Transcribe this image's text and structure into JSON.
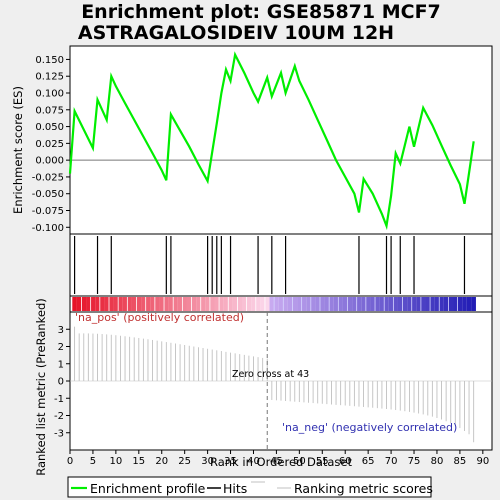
{
  "title_line1": "Enrichment plot: GSE85871 MCF7",
  "title_line2": "ASTRAGALOSIDEIV 10UM 12H",
  "colors": {
    "es_line": "#00ee00",
    "hits": "#000000",
    "ranking": "#c0c0c0",
    "pos_bar": "#dd0000",
    "neg_bar": "#3300cc",
    "zero_line": "#777777"
  },
  "es_panel": {
    "ylabel": "Enrichment score (ES)",
    "ylim": [
      -0.11,
      0.17
    ],
    "yticks": [
      "0.150",
      "0.125",
      "0.100",
      "0.075",
      "0.050",
      "0.025",
      "0.000",
      "-0.025",
      "-0.050",
      "-0.075",
      "-0.100"
    ],
    "ytick_values": [
      0.15,
      0.125,
      0.1,
      0.075,
      0.05,
      0.025,
      0.0,
      -0.025,
      -0.05,
      -0.075,
      -0.1
    ]
  },
  "rank_panel": {
    "ylabel": "Ranked list metric (PreRanked)",
    "xlabel": "Rank in Ordered Dataset",
    "ylim": [
      -4,
      4
    ],
    "yticks": [
      "3",
      "2",
      "1",
      "0",
      "-1",
      "-2",
      "-3"
    ],
    "ytick_values": [
      3,
      2,
      1,
      0,
      -1,
      -2,
      -3
    ],
    "pos_label": "'na_pos' (positively correlated)",
    "neg_label": "'na_neg' (negatively correlated)",
    "zero_cross_label": "Zero cross at 43"
  },
  "xaxis": {
    "xlim": [
      0,
      92
    ],
    "ticks": [
      "0",
      "5",
      "10",
      "15",
      "20",
      "25",
      "30",
      "35",
      "40",
      "45",
      "50",
      "55",
      "60",
      "65",
      "70",
      "75",
      "80",
      "85",
      "90"
    ],
    "tick_values": [
      0,
      5,
      10,
      15,
      20,
      25,
      30,
      35,
      40,
      45,
      50,
      55,
      60,
      65,
      70,
      75,
      80,
      85,
      90
    ]
  },
  "legend": {
    "items": [
      "Enrichment profile",
      "Hits",
      "Ranking metric scores"
    ]
  },
  "chart_data": {
    "type": "line",
    "title": "Enrichment plot: GSE85871 MCF7 ASTRAGALOSIDEIV 10UM 12H",
    "xlabel": "Rank in Ordered Dataset",
    "ylabel": "Enrichment score (ES)",
    "xlim": [
      0,
      92
    ],
    "ylim": [
      -0.11,
      0.17
    ],
    "grid": false,
    "legend_position": "bottom",
    "es_profile": {
      "x": [
        0,
        1,
        5,
        6,
        8,
        9,
        10,
        12,
        14,
        16,
        18,
        20,
        21,
        22,
        24,
        26,
        28,
        30,
        31,
        32,
        33,
        34,
        35,
        36,
        38,
        40,
        41,
        43,
        44,
        46,
        47,
        49,
        50,
        52,
        54,
        56,
        58,
        60,
        62,
        63,
        64,
        66,
        68,
        69,
        70,
        71,
        72,
        74,
        75,
        77,
        79,
        81,
        83,
        85,
        86,
        88
      ],
      "y": [
        -0.02,
        0.073,
        0.018,
        0.09,
        0.06,
        0.125,
        0.11,
        0.085,
        0.06,
        0.035,
        0.01,
        -0.015,
        -0.03,
        0.068,
        0.044,
        0.02,
        -0.006,
        -0.031,
        0.012,
        0.055,
        0.1,
        0.135,
        0.118,
        0.157,
        0.13,
        0.1,
        0.087,
        0.123,
        0.095,
        0.13,
        0.1,
        0.14,
        0.118,
        0.09,
        0.06,
        0.03,
        0.0,
        -0.025,
        -0.05,
        -0.078,
        -0.028,
        -0.05,
        -0.08,
        -0.098,
        -0.053,
        0.01,
        -0.005,
        0.05,
        0.02,
        0.078,
        0.052,
        0.022,
        -0.008,
        -0.036,
        -0.065,
        0.028
      ]
    },
    "hits": [
      1,
      6,
      9,
      21,
      22,
      30,
      31,
      32,
      33,
      35,
      41,
      44,
      47,
      63,
      69,
      70,
      72,
      75,
      86
    ],
    "ranking_metric": {
      "zero_cross": 43,
      "first_value": 3.15,
      "last_value": -3.55
    }
  }
}
